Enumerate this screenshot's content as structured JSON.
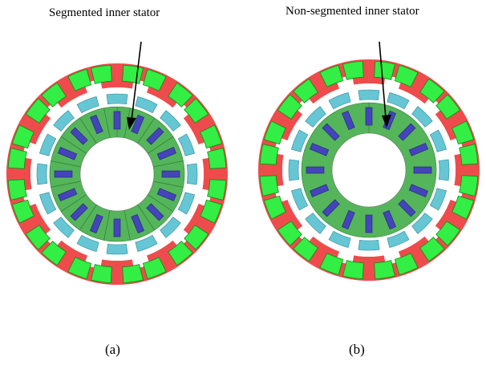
{
  "labels": {
    "title_a": "Segmented inner stator",
    "title_b": "Non-segmented inner stator",
    "caption_a": "(a)",
    "caption_b": "(b)"
  },
  "colors": {
    "outer_stator": "#ee4c4c",
    "coil": "#33ee44",
    "coil_outline": "#118811",
    "rotor_segment": "#66c6d4",
    "inner_stator": "#55b55a",
    "inner_magnet": "#4444bb",
    "gap": "#ffffff",
    "arrow": "#000000"
  },
  "figures": [
    {
      "id": "a",
      "outer_slots": 12,
      "rotor_segments": 16,
      "inner_slots": 16
    },
    {
      "id": "b",
      "outer_slots": 12,
      "rotor_segments": 16,
      "inner_slots": 16
    }
  ]
}
